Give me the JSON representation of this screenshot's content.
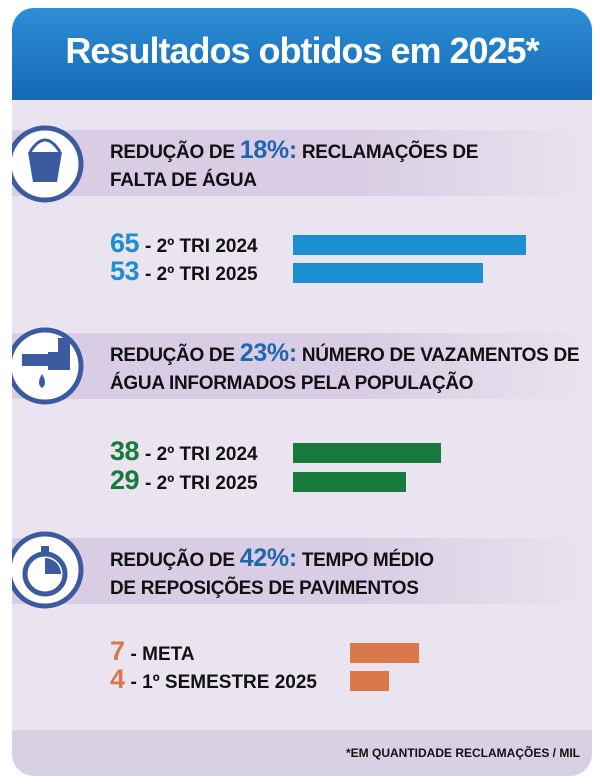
{
  "title": "Resultados obtidos em 2025*",
  "footnote": "*EM QUANTIDADE RECLAMAÇÕES / MIL",
  "chart_data": [
    {
      "type": "bar",
      "orientation": "horizontal",
      "heading": {
        "lead": "REDUÇÃO DE",
        "highlight": "18%:",
        "rest": "RECLAMAÇÕES DE FALTA DE ÁGUA",
        "highlight_color": "#1f66ad"
      },
      "categories": [
        "- 2º TRI 2024",
        "- 2º TRI 2025"
      ],
      "values": [
        65,
        53
      ],
      "color": "#1b8fd0"
    },
    {
      "type": "bar",
      "orientation": "horizontal",
      "heading": {
        "lead": "REDUÇÃO DE",
        "highlight": "23%:",
        "rest": "NÚMERO DE VAZAMENTOS DE ÁGUA INFORMADOS PELA POPULAÇÃO",
        "highlight_color": "#1f66ad"
      },
      "categories": [
        "- 2º TRI 2024",
        "- 2º TRI 2025"
      ],
      "values": [
        38,
        29
      ],
      "color": "#157a3c"
    },
    {
      "type": "bar",
      "orientation": "horizontal",
      "heading": {
        "lead": "REDUÇÃO DE",
        "highlight": "42%:",
        "rest": "TEMPO MÉDIO DE REPOSIÇÕES DE PAVIMENTOS",
        "highlight_color": "#1f66ad"
      },
      "categories": [
        "- META",
        "- 1º SEMESTRE 2025"
      ],
      "values": [
        7,
        4
      ],
      "color": "#d9794a"
    }
  ]
}
